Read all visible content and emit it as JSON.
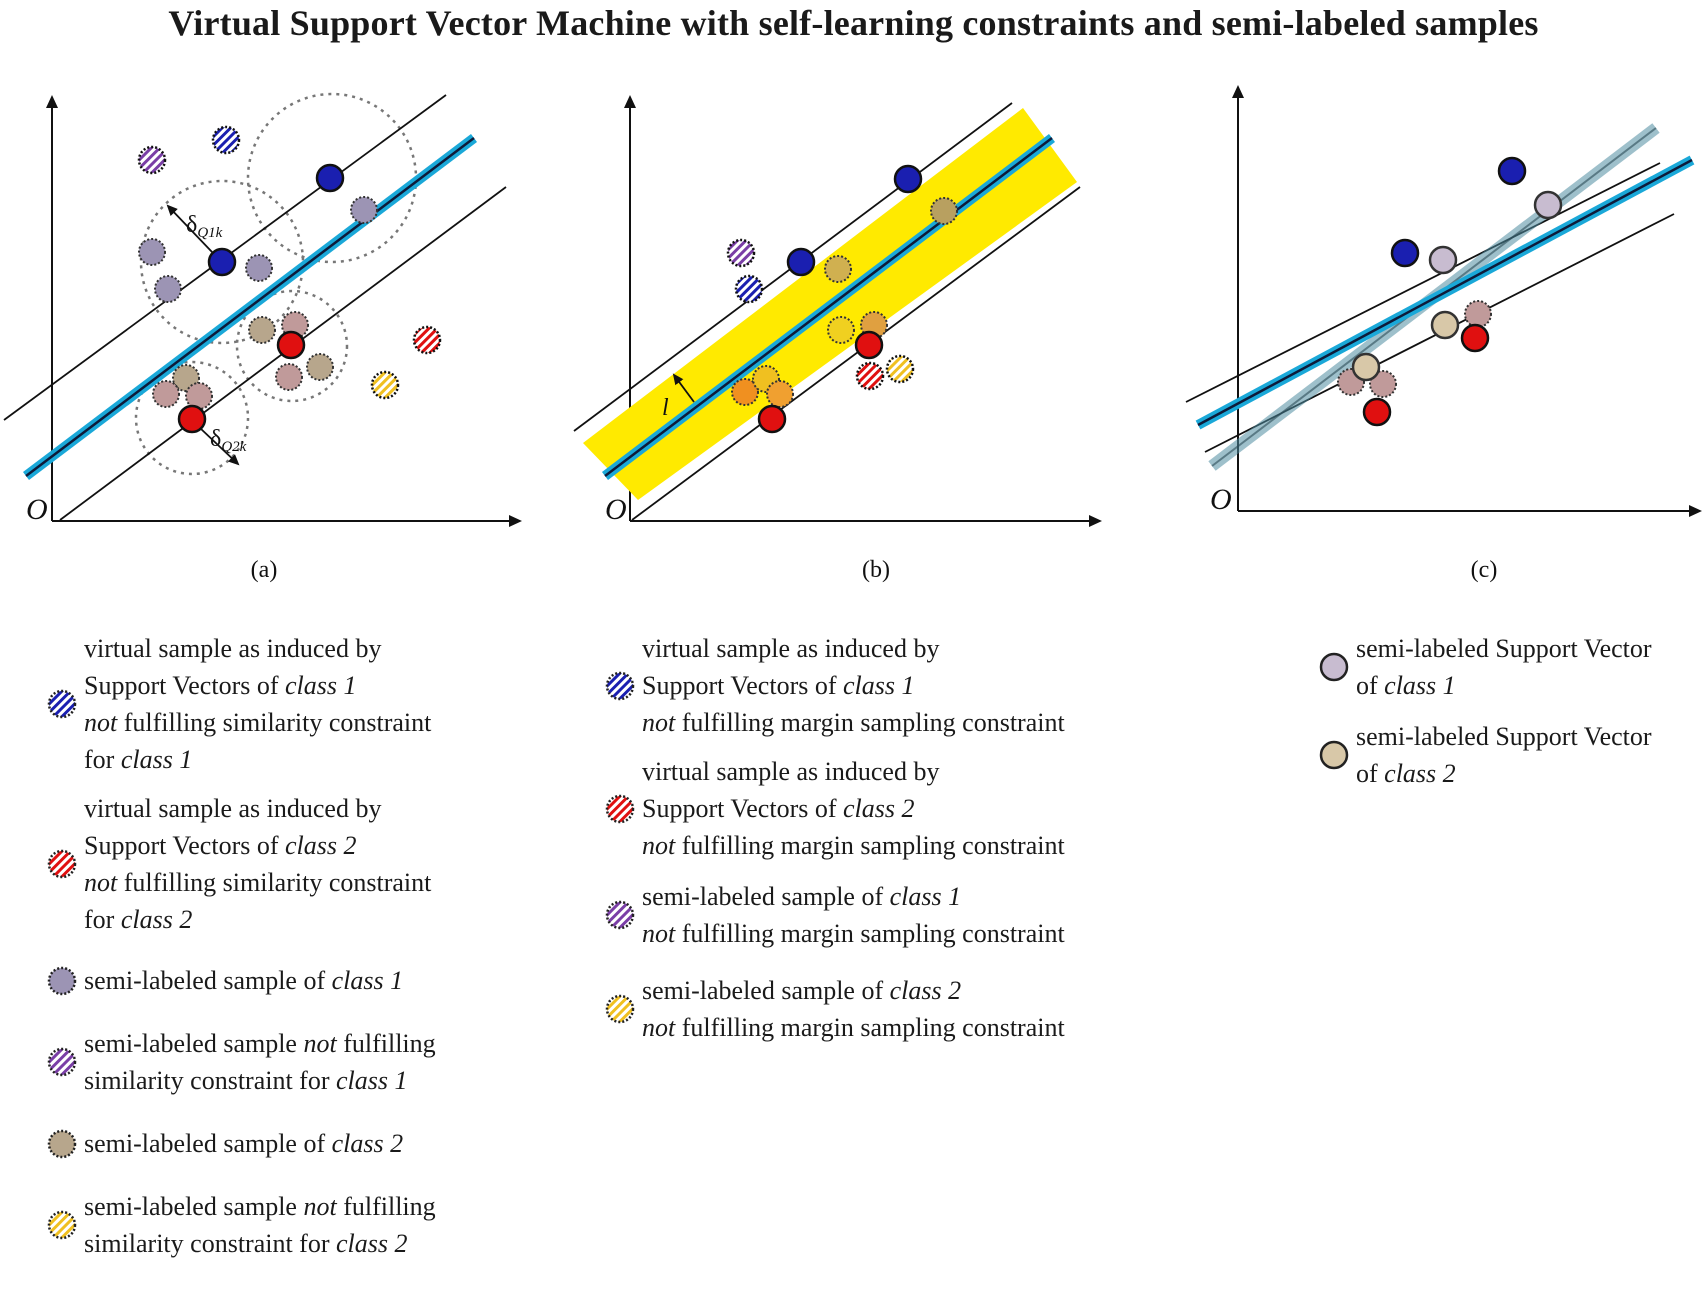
{
  "title": "Virtual Support Vector Machine with self-learning constraints and semi-labeled samples",
  "panels": [
    {
      "id": "a",
      "caption": "(a)",
      "origin_label": "O",
      "annotations": [
        "δQ1k",
        "δQ2k"
      ]
    },
    {
      "id": "b",
      "caption": "(b)",
      "origin_label": "O",
      "annotations": [
        "l"
      ]
    },
    {
      "id": "c",
      "caption": "(c)",
      "origin_label": "O",
      "annotations": []
    }
  ],
  "colors": {
    "class1_sv": "#1a1fb0",
    "class2_sv": "#e01010",
    "hyperplane": "#1aa8d8",
    "margin_band": "#ffea00",
    "semi_class1": "#9c94b4",
    "semi_class2": "#b7a68c",
    "semi_sv_class1": "#c8bcd0",
    "semi_sv_class2": "#d8c8a8",
    "yellow_hatch": "#f0c020",
    "purple_hatch": "#7a3ea6"
  },
  "legend": {
    "col1": [
      {
        "symbol": "hatched-blue",
        "lines": [
          [
            "virtual sample as induced by"
          ],
          [
            "Support Vectors of ",
            {
              "i": "class 1"
            }
          ],
          [
            {
              "i": "not"
            },
            " fulfilling similarity constraint"
          ],
          [
            "for ",
            {
              "i": "class 1"
            }
          ]
        ]
      },
      {
        "symbol": "hatched-red",
        "lines": [
          [
            "virtual sample as induced by"
          ],
          [
            "Support Vectors of ",
            {
              "i": "class 2"
            }
          ],
          [
            {
              "i": "not"
            },
            " fulfilling similarity constraint"
          ],
          [
            "for ",
            {
              "i": "class 2"
            }
          ]
        ]
      },
      {
        "symbol": "semi-class1",
        "lines": [
          [
            "semi-labeled sample of ",
            {
              "i": "class 1"
            }
          ]
        ]
      },
      {
        "symbol": "hatched-purple",
        "lines": [
          [
            "semi-labeled sample ",
            {
              "i": "not"
            },
            " fulfilling"
          ],
          [
            "similarity constraint for ",
            {
              "i": "class 1"
            }
          ]
        ]
      },
      {
        "symbol": "semi-class2",
        "lines": [
          [
            "semi-labeled sample of ",
            {
              "i": "class 2"
            }
          ]
        ]
      },
      {
        "symbol": "hatched-yellow",
        "lines": [
          [
            "semi-labeled sample ",
            {
              "i": "not"
            },
            " fulfilling"
          ],
          [
            "similarity constraint for ",
            {
              "i": "class 2"
            }
          ]
        ]
      }
    ],
    "col2": [
      {
        "symbol": "hatched-blue",
        "lines": [
          [
            "virtual sample as induced by"
          ],
          [
            "Support Vectors of ",
            {
              "i": "class 1"
            }
          ],
          [
            {
              "i": "not"
            },
            " fulfilling margin sampling constraint"
          ]
        ]
      },
      {
        "symbol": "hatched-red",
        "lines": [
          [
            "virtual sample as induced by"
          ],
          [
            "Support Vectors of ",
            {
              "i": "class 2"
            }
          ],
          [
            {
              "i": "not"
            },
            " fulfilling margin sampling constraint"
          ]
        ]
      },
      {
        "symbol": "hatched-purple",
        "lines": [
          [
            "semi-labeled sample of ",
            {
              "i": "class 1"
            }
          ],
          [
            {
              "i": "not"
            },
            " fulfilling margin sampling constraint"
          ]
        ]
      },
      {
        "symbol": "hatched-yellow",
        "lines": [
          [
            "semi-labeled sample of ",
            {
              "i": "class 2"
            }
          ],
          [
            {
              "i": "not"
            },
            " fulfilling margin sampling constraint"
          ]
        ]
      }
    ],
    "col3": [
      {
        "symbol": "semi-sv-class1",
        "lines": [
          [
            "semi-labeled Support Vector"
          ],
          [
            " of ",
            {
              "i": "class 1"
            }
          ]
        ]
      },
      {
        "symbol": "semi-sv-class2",
        "lines": [
          [
            "semi-labeled Support Vector"
          ],
          [
            "of ",
            {
              "i": "class 2"
            }
          ]
        ]
      }
    ]
  }
}
